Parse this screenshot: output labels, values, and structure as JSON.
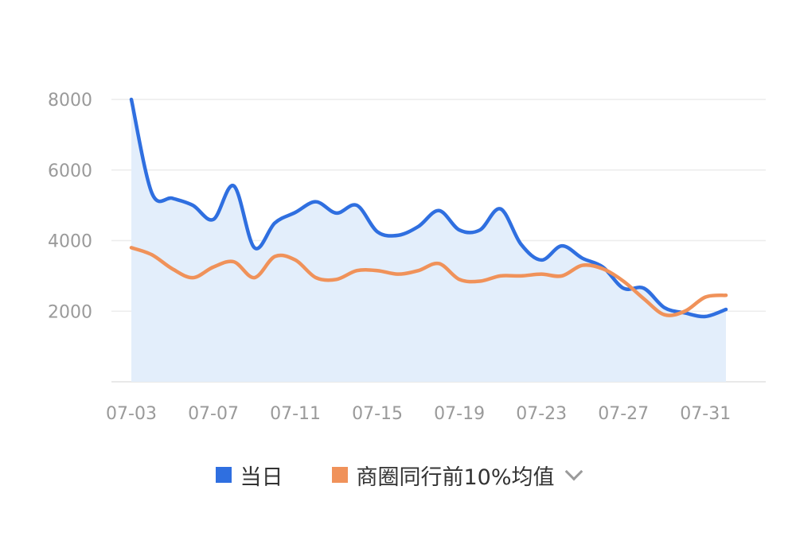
{
  "chart_data": {
    "type": "line",
    "x": [
      "07-03",
      "07-04",
      "07-05",
      "07-06",
      "07-07",
      "07-08",
      "07-09",
      "07-10",
      "07-11",
      "07-12",
      "07-13",
      "07-14",
      "07-15",
      "07-16",
      "07-17",
      "07-18",
      "07-19",
      "07-20",
      "07-21",
      "07-22",
      "07-23",
      "07-24",
      "07-25",
      "07-26",
      "07-27",
      "07-28",
      "07-29",
      "07-30",
      "07-31",
      "08-01"
    ],
    "xticks": [
      "07-03",
      "07-07",
      "07-11",
      "07-15",
      "07-19",
      "07-23",
      "07-27",
      "07-31"
    ],
    "yticks": [
      2000,
      4000,
      6000,
      8000
    ],
    "ylim": [
      0,
      8000
    ],
    "series": [
      {
        "name": "当日",
        "color": "#2f6fe0",
        "area": true,
        "area_color": "#e3eefb",
        "values": [
          8000,
          5350,
          5200,
          5000,
          4600,
          5550,
          3800,
          4500,
          4800,
          5100,
          4780,
          5000,
          4250,
          4150,
          4400,
          4850,
          4300,
          4300,
          4900,
          3900,
          3450,
          3850,
          3500,
          3250,
          2650,
          2650,
          2100,
          1950,
          1850,
          2050
        ]
      },
      {
        "name": "商圈同行前10%均值",
        "color": "#f0925a",
        "area": false,
        "values": [
          3800,
          3600,
          3200,
          2950,
          3250,
          3400,
          2950,
          3550,
          3450,
          2950,
          2900,
          3150,
          3150,
          3050,
          3150,
          3350,
          2900,
          2850,
          3000,
          3000,
          3050,
          3000,
          3300,
          3200,
          2850,
          2350,
          1900,
          2000,
          2400,
          2450
        ]
      }
    ],
    "legend": "bottom",
    "grid": true
  },
  "legend": {
    "items": [
      {
        "label": "当日",
        "color": "#2f6fe0",
        "dropdown": false
      },
      {
        "label": "商圈同行前10%均值",
        "color": "#f0925a",
        "dropdown": true,
        "dropdown_icon": "chevron-down-icon"
      }
    ]
  }
}
